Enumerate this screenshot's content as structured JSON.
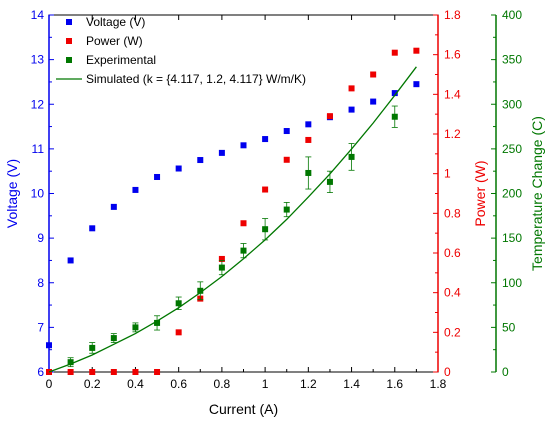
{
  "chart_data": {
    "type": "scatter",
    "xlabel": "Current (A)",
    "x_ticks": [
      "0",
      "0.2",
      "0.4",
      "0.6",
      "0.8",
      "1",
      "1.2",
      "1.4",
      "1.6",
      "1.8"
    ],
    "xlim": [
      0,
      1.8
    ],
    "y_axes": [
      {
        "id": "voltage",
        "label": "Voltage (V)",
        "side": "left",
        "color": "#0000ee",
        "lim": [
          6,
          14
        ],
        "ticks": [
          "6",
          "7",
          "8",
          "9",
          "10",
          "11",
          "12",
          "13",
          "14"
        ]
      },
      {
        "id": "power",
        "label": "Power (W)",
        "side": "right",
        "color": "#ee0000",
        "lim": [
          0,
          1.8
        ],
        "ticks": [
          "0",
          "0.2",
          "0.4",
          "0.6",
          "0.8",
          "1",
          "1.2",
          "1.4",
          "1.6",
          "1.8"
        ]
      },
      {
        "id": "temp",
        "label": "Temperature Change (C)",
        "side": "right-outer",
        "color": "#007700",
        "lim": [
          0,
          400
        ],
        "ticks": [
          "0",
          "50",
          "100",
          "150",
          "200",
          "250",
          "300",
          "350",
          "400"
        ]
      }
    ],
    "legend_position": "top-left",
    "series": [
      {
        "name": "Voltage (V)",
        "axis": "voltage",
        "marker": "square",
        "color": "#0000ee",
        "x": [
          0,
          0.1,
          0.2,
          0.3,
          0.4,
          0.5,
          0.6,
          0.7,
          0.8,
          0.9,
          1.0,
          1.1,
          1.2,
          1.3,
          1.4,
          1.5,
          1.6,
          1.7
        ],
        "y": [
          6.6,
          8.5,
          9.22,
          9.7,
          10.08,
          10.37,
          10.56,
          10.75,
          10.91,
          11.08,
          11.22,
          11.4,
          11.55,
          11.71,
          11.88,
          12.06,
          12.25,
          12.45
        ]
      },
      {
        "name": "Power (W)",
        "axis": "power",
        "marker": "square",
        "color": "#ee0000",
        "x": [
          0,
          0.1,
          0.2,
          0.3,
          0.4,
          0.5,
          0.6,
          0.7,
          0.8,
          0.9,
          1.0,
          1.1,
          1.2,
          1.3,
          1.4,
          1.5,
          1.6,
          1.7
        ],
        "y": [
          0,
          0,
          0,
          0,
          0,
          0,
          0.2,
          0.37,
          0.57,
          0.75,
          0.92,
          1.07,
          1.17,
          1.29,
          1.43,
          1.5,
          1.61,
          1.62
        ]
      },
      {
        "name": "Experimental",
        "axis": "temp",
        "marker": "square",
        "color": "#007700",
        "x": [
          0.1,
          0.2,
          0.3,
          0.4,
          0.5,
          0.6,
          0.7,
          0.8,
          0.9,
          1.0,
          1.1,
          1.2,
          1.3,
          1.4,
          1.6
        ],
        "y": [
          11,
          27,
          38,
          50,
          55,
          77,
          91,
          117,
          136,
          160,
          182,
          223,
          213,
          241,
          286
        ],
        "err": [
          5,
          6,
          5,
          5,
          8,
          7,
          10,
          8,
          8,
          12,
          8,
          18,
          12,
          15,
          12
        ]
      },
      {
        "name": "Simulated (k = {4.117, 1.2, 4.117} W/m/K)",
        "axis": "temp",
        "marker": "line",
        "color": "#007700",
        "x": [
          0,
          0.1,
          0.2,
          0.3,
          0.4,
          0.5,
          0.6,
          0.7,
          0.8,
          0.9,
          1.0,
          1.1,
          1.2,
          1.3,
          1.4,
          1.5,
          1.6,
          1.7
        ],
        "y": [
          0,
          9,
          19,
          31,
          43,
          57,
          72,
          89,
          107,
          127,
          148,
          171,
          196,
          222,
          250,
          279,
          310,
          342
        ]
      }
    ]
  }
}
